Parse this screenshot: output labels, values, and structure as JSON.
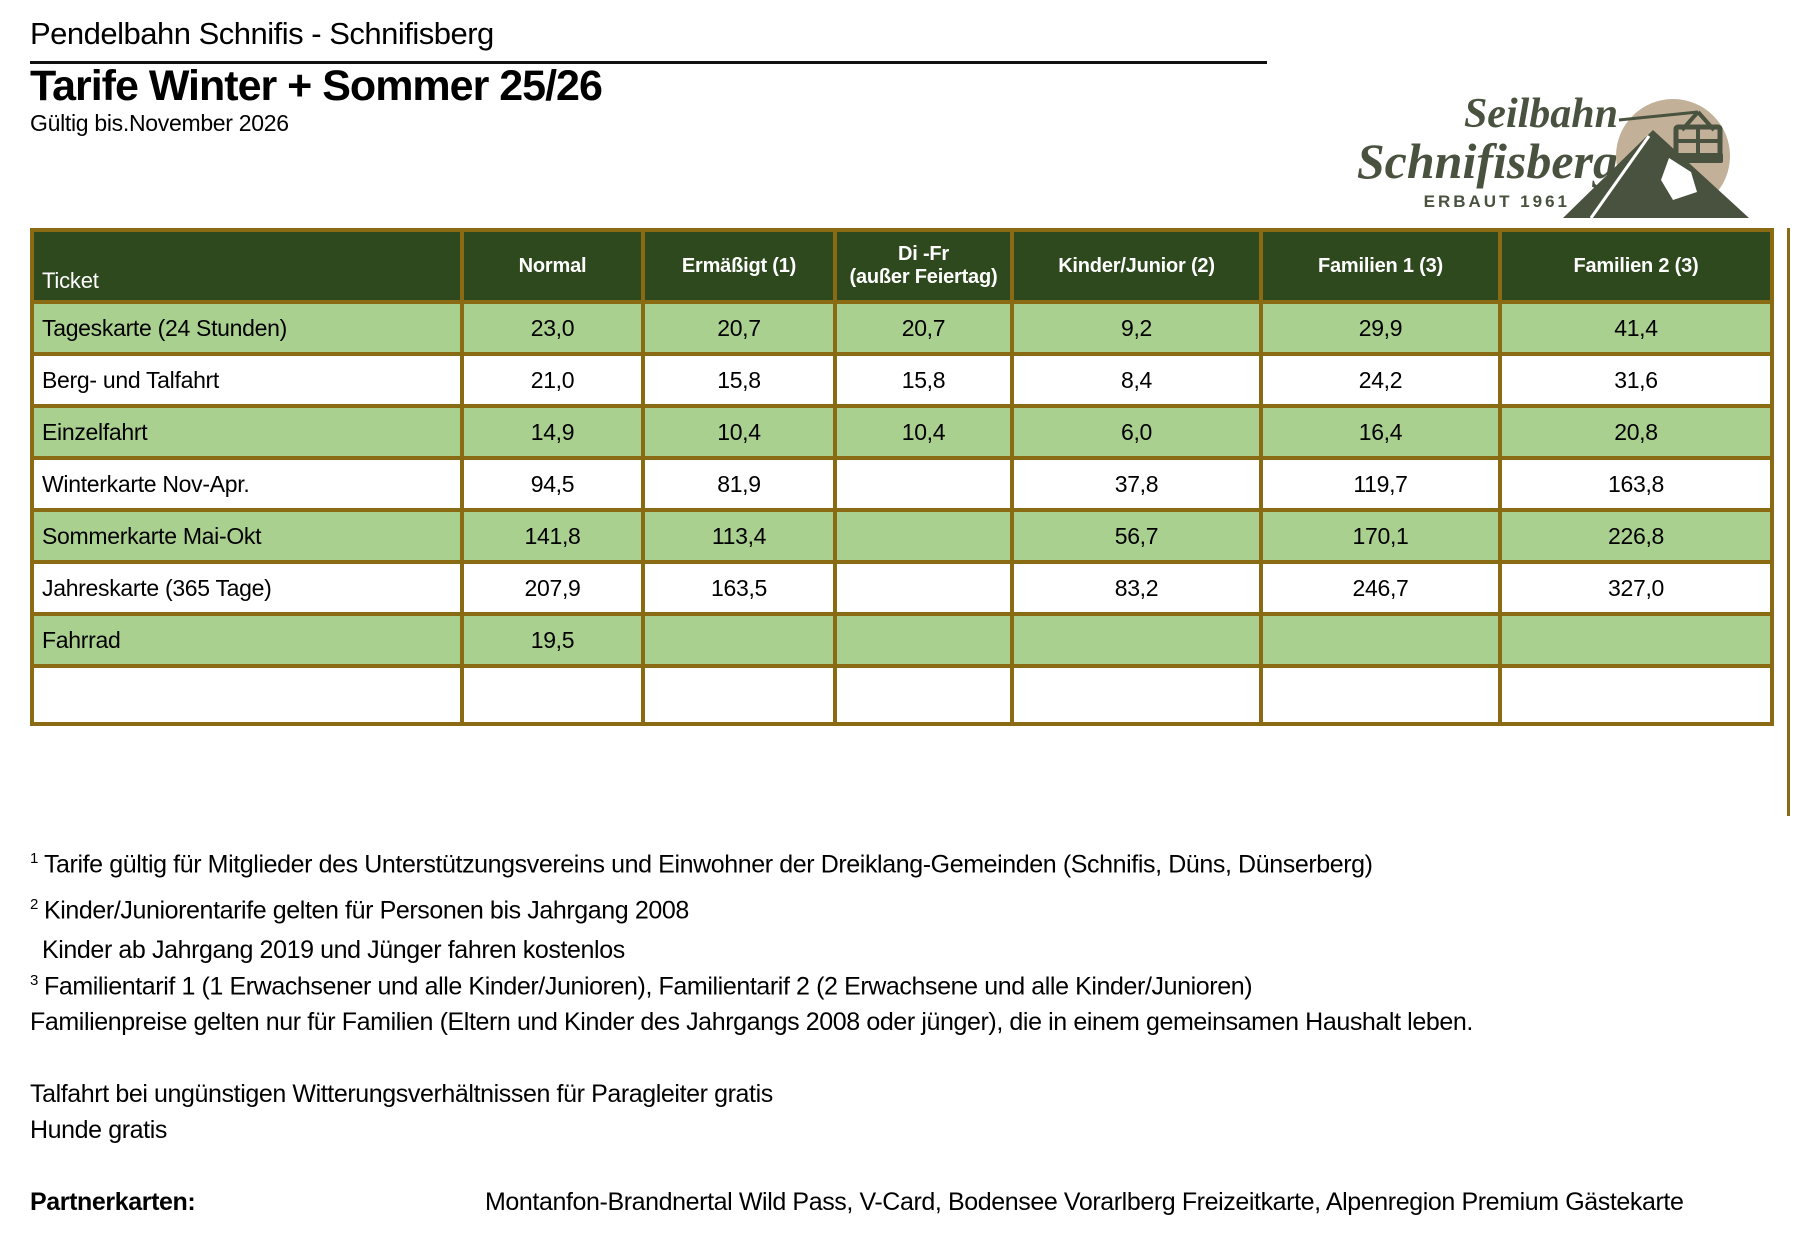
{
  "document": {
    "pretitle": "Pendelbahn Schnifis - Schnifisberg",
    "title": "Tarife Winter + Sommer 25/26",
    "validity": "Gültig bis.November 2026"
  },
  "logo": {
    "name_line1": "Seilbahn",
    "name_line2": "Schnifisberg",
    "tagline": "ERBAUT 1961",
    "text_color": "#49513f",
    "badge_color": "#c3b098"
  },
  "table": {
    "columns": [
      {
        "label": "Ticket"
      },
      {
        "label": "Normal"
      },
      {
        "label": "Ermäßigt (1)"
      },
      {
        "label": "Di -Fr",
        "sublabel": "(außer Feiertag)"
      },
      {
        "label": "Kinder/Junior (2)"
      },
      {
        "label": "Familien 1 (3)"
      },
      {
        "label": "Familien 2 (3)"
      }
    ],
    "rows": [
      {
        "ticket": "Tageskarte (24 Stunden)",
        "values": [
          "23,0",
          "20,7",
          "20,7",
          "9,2",
          "29,9",
          "41,4"
        ]
      },
      {
        "ticket": "Berg- und Talfahrt",
        "values": [
          "21,0",
          "15,8",
          "15,8",
          "8,4",
          "24,2",
          "31,6"
        ]
      },
      {
        "ticket": "Einzelfahrt",
        "values": [
          "14,9",
          "10,4",
          "10,4",
          "6,0",
          "16,4",
          "20,8"
        ]
      },
      {
        "ticket": "Winterkarte Nov-Apr.",
        "values": [
          "94,5",
          "81,9",
          "",
          "37,8",
          "119,7",
          "163,8"
        ]
      },
      {
        "ticket": "Sommerkarte Mai-Okt",
        "values": [
          "141,8",
          "113,4",
          "",
          "56,7",
          "170,1",
          "226,8"
        ]
      },
      {
        "ticket": "Jahreskarte (365 Tage)",
        "values": [
          "207,9",
          "163,5",
          "",
          "83,2",
          "246,7",
          "327,0"
        ]
      },
      {
        "ticket": "Fahrrad",
        "values": [
          "19,5",
          "",
          "",
          "",
          "",
          ""
        ]
      },
      {
        "ticket": "",
        "values": [
          "",
          "",
          "",
          "",
          "",
          ""
        ]
      }
    ],
    "colors": {
      "header_bg": "#2d491d",
      "row_alt_bg": "#a9d08e",
      "border": "#8a6a12",
      "header_text": "#ffffff"
    }
  },
  "footnotes": [
    {
      "sup": "1",
      "text": "Tarife gültig für Mitglieder des Unterstützungsvereins und Einwohner der Dreiklang-Gemeinden (Schnifis, Düns, Dünserberg)"
    },
    {
      "sup": "2",
      "text": "Kinder/Juniorentarife gelten für Personen bis Jahrgang 2008"
    },
    {
      "sup": "",
      "text": "Kinder ab Jahrgang 2019 und Jünger fahren kostenlos"
    },
    {
      "sup": "3",
      "text": "Familientarif 1 (1 Erwachsener und alle Kinder/Junioren), Familientarif 2 (2 Erwachsene und alle Kinder/Junioren)"
    },
    {
      "sup": "",
      "text": "Familienpreise gelten nur für Familien (Eltern und Kinder des Jahrgangs 2008 oder jünger), die in einem gemeinsamen Haushalt leben."
    }
  ],
  "notes": [
    "Talfahrt bei ungünstigen Witterungsverhältnissen für Paragleiter gratis",
    "Hunde gratis"
  ],
  "partner": {
    "label": "Partnerkarten:",
    "value": "Montanfon-Brandnertal Wild Pass, V-Card, Bodensee Vorarlberg Freizeitkarte, Alpenregion Premium Gästekarte"
  }
}
